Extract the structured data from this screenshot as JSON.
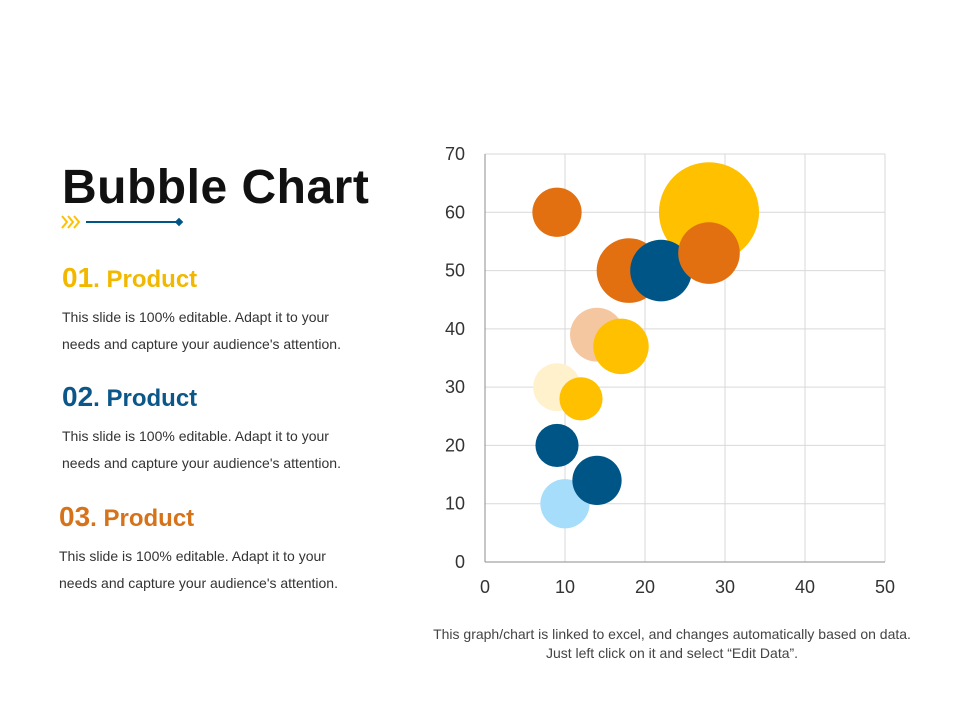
{
  "colors": {
    "gold": "#FFC000",
    "orange": "#E26F10",
    "navy": "#005587",
    "peach": "#F4C7A0",
    "cream": "#FFF1CC",
    "light_blue": "#A6DDFA",
    "grid": "#d9d9d9"
  },
  "slide": {
    "title": "Bubble Chart",
    "footer_note": "This graph/chart is linked to excel, and changes automatically based on data. Just left click on it and select “Edit Data”."
  },
  "items": [
    {
      "number": "01",
      "label": ". Product",
      "description": "This slide is 100% editable. Adapt it to your needs and capture your audience's attention."
    },
    {
      "number": "02",
      "label": ". Product",
      "description": "This slide is 100% editable. Adapt it to your needs and capture your audience's attention."
    },
    {
      "number": "03",
      "label": ". Product",
      "description": "This slide is 100% editable. Adapt it to your needs and capture your audience's attention."
    }
  ],
  "chart_data": {
    "type": "scatter",
    "subtype": "bubble",
    "title": "",
    "xlabel": "",
    "ylabel": "",
    "xlim": [
      0,
      50
    ],
    "ylim": [
      0,
      70
    ],
    "xticks": [
      0,
      10,
      20,
      30,
      40,
      50
    ],
    "yticks": [
      0,
      10,
      20,
      30,
      40,
      50,
      60,
      70
    ],
    "grid": true,
    "legend": "none",
    "bubbles": [
      {
        "x": 28,
        "y": 60,
        "size": 6.5,
        "color": "#FFC000"
      },
      {
        "x": 9,
        "y": 60,
        "size": 3.2,
        "color": "#E26F10"
      },
      {
        "x": 18,
        "y": 50,
        "size": 4.2,
        "color": "#E26F10"
      },
      {
        "x": 22,
        "y": 50,
        "size": 4.0,
        "color": "#005587"
      },
      {
        "x": 28,
        "y": 53,
        "size": 4.0,
        "color": "#E26F10"
      },
      {
        "x": 14,
        "y": 39,
        "size": 3.5,
        "color": "#F4C7A0"
      },
      {
        "x": 17,
        "y": 37,
        "size": 3.6,
        "color": "#FFC000"
      },
      {
        "x": 9,
        "y": 30,
        "size": 3.1,
        "color": "#FFF1CC"
      },
      {
        "x": 12,
        "y": 28,
        "size": 2.8,
        "color": "#FFC000"
      },
      {
        "x": 9,
        "y": 20,
        "size": 2.8,
        "color": "#005587"
      },
      {
        "x": 10,
        "y": 10,
        "size": 3.2,
        "color": "#A6DDFA"
      },
      {
        "x": 14,
        "y": 14,
        "size": 3.2,
        "color": "#005587"
      }
    ]
  }
}
